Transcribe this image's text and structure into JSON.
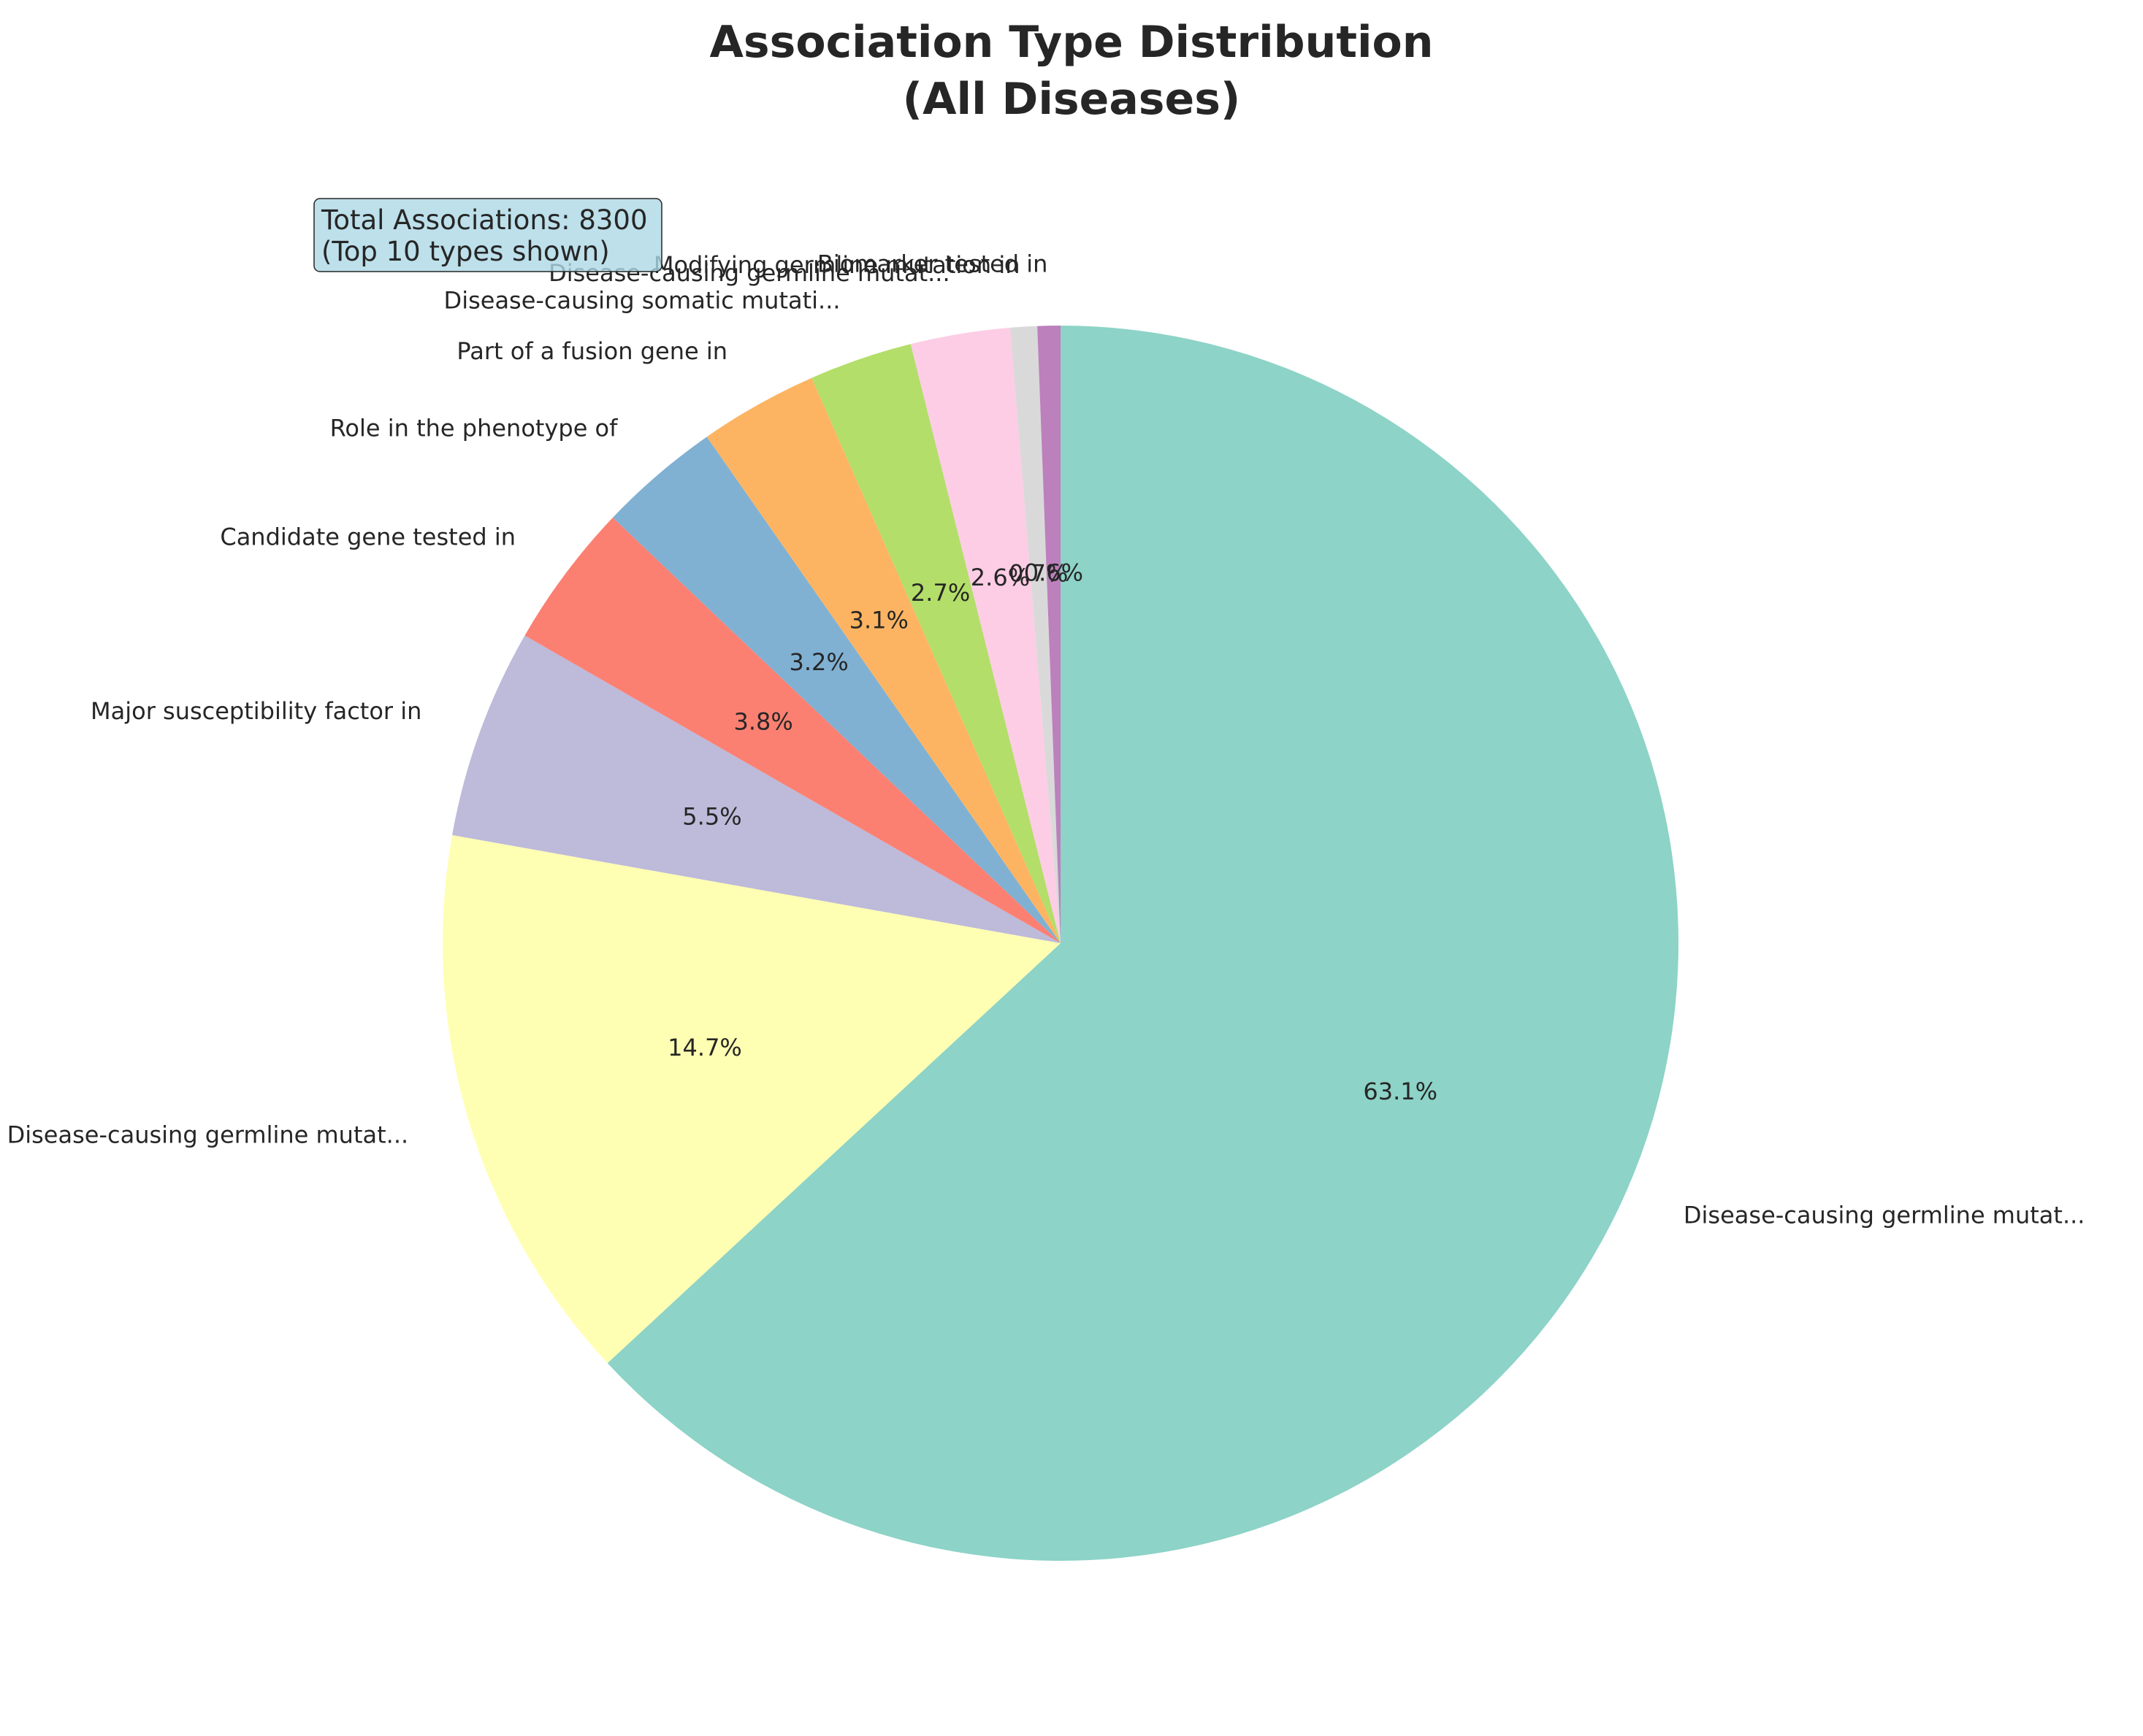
{
  "chart_data": {
    "type": "pie",
    "title": [
      "Association Type Distribution",
      "(All Diseases)"
    ],
    "annotation": [
      "Total Associations: 8300",
      "(Top 10 types shown)"
    ],
    "start_angle_deg": 90,
    "direction": "clockwise",
    "slices": [
      {
        "label": "Disease-causing germline mutat...",
        "value": 63.1,
        "pct_label": "63.1%",
        "color": "#8dd3c7"
      },
      {
        "label": "Disease-causing germline mutat...",
        "value": 14.7,
        "pct_label": "14.7%",
        "color": "#ffffb3"
      },
      {
        "label": "Major susceptibility factor in",
        "value": 5.5,
        "pct_label": "5.5%",
        "color": "#bebada"
      },
      {
        "label": "Candidate gene tested in",
        "value": 3.8,
        "pct_label": "3.8%",
        "color": "#fb8072"
      },
      {
        "label": "Role in the phenotype of",
        "value": 3.2,
        "pct_label": "3.2%",
        "color": "#80b1d3"
      },
      {
        "label": "Part of a fusion gene in",
        "value": 3.1,
        "pct_label": "3.1%",
        "color": "#fdb462"
      },
      {
        "label": "Disease-causing somatic mutati...",
        "value": 2.7,
        "pct_label": "2.7%",
        "color": "#b3de69"
      },
      {
        "label": "Disease-causing germline mutat...",
        "value": 2.6,
        "pct_label": "2.6%",
        "color": "#fccde5"
      },
      {
        "label": "Modifying germline mutation in",
        "value": 0.7,
        "pct_label": "0.7%",
        "color": "#d9d9d9"
      },
      {
        "label": "Biomarker tested in",
        "value": 0.6,
        "pct_label": "0.6%",
        "color": "#bc80bd"
      }
    ]
  }
}
